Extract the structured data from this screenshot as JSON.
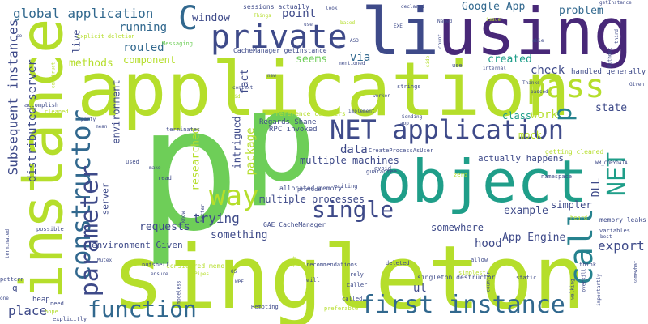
{
  "palette": {
    "background": "#ffffff",
    "lime": "#b5de2b",
    "green": "#6ece58",
    "teal": "#1f9e89",
    "blue": "#26828e",
    "navy": "#3e4a89",
    "purple": "#482878",
    "indigo": "#31688e",
    "yellow": "#fde725"
  },
  "words": [
    {
      "text": "p",
      "size": 210,
      "color": "#6ece58",
      "rot": 0
    },
    {
      "text": "singleton",
      "size": 108,
      "color": "#b5de2b",
      "rot": 0
    },
    {
      "text": "application",
      "size": 92,
      "color": "#b5de2b",
      "rot": 0
    },
    {
      "text": "using",
      "size": 80,
      "color": "#482878",
      "rot": 0
    },
    {
      "text": "li",
      "size": 80,
      "color": "#3e4a89",
      "rot": 0
    },
    {
      "text": "object",
      "size": 72,
      "color": "#1f9e89",
      "rot": 0
    },
    {
      "text": "instance",
      "size": 72,
      "color": "#b5de2b",
      "rot": -90
    },
    {
      "text": "p",
      "size": 150,
      "color": "#6ece58",
      "rot": 0
    },
    {
      "text": "private",
      "size": 40,
      "color": "#3e4a89",
      "rot": 0
    },
    {
      "text": "pass",
      "size": 40,
      "color": "#b5de2b",
      "rot": 0
    },
    {
      "text": "C",
      "size": 40,
      "color": "#31688e",
      "rot": 0
    },
    {
      "text": "NET application",
      "size": 32,
      "color": "#3e4a89",
      "rot": 0
    },
    {
      "text": "first instance",
      "size": 30,
      "color": "#31688e",
      "rot": 0
    },
    {
      "text": "function",
      "size": 28,
      "color": "#31688e",
      "rot": 0
    },
    {
      "text": "way",
      "size": 34,
      "color": "#b5de2b",
      "rot": 0
    },
    {
      "text": "single",
      "size": 28,
      "color": "#3e4a89",
      "rot": 0
    },
    {
      "text": "call",
      "size": 40,
      "color": "#26828e",
      "rot": -90
    },
    {
      "text": "constructor",
      "size": 32,
      "color": "#31688e",
      "rot": -90
    },
    {
      "text": "parameter",
      "size": 30,
      "color": "#3e4a89",
      "rot": -90
    },
    {
      "text": "NET",
      "size": 30,
      "color": "#1f9e89",
      "rot": -90
    },
    {
      "text": "global application",
      "size": 16,
      "color": "#31688e",
      "rot": 0
    },
    {
      "text": "Google App",
      "size": 13,
      "color": "#31688e",
      "rot": 0
    },
    {
      "text": "problem",
      "size": 13,
      "color": "#31688e",
      "rot": 0
    },
    {
      "text": "window",
      "size": 13,
      "color": "#3e4a89",
      "rot": 0
    },
    {
      "text": "point",
      "size": 14,
      "color": "#3e4a89",
      "rot": 0
    },
    {
      "text": "running",
      "size": 14,
      "color": "#31688e",
      "rot": 0
    },
    {
      "text": "routed",
      "size": 14,
      "color": "#31688e",
      "rot": 0
    },
    {
      "text": "component",
      "size": 12,
      "color": "#b5de2b",
      "rot": 0
    },
    {
      "text": "methods",
      "size": 13,
      "color": "#b5de2b",
      "rot": 0
    },
    {
      "text": "seems",
      "size": 13,
      "color": "#6ece58",
      "rot": 0
    },
    {
      "text": "via",
      "size": 14,
      "color": "#31688e",
      "rot": 0
    },
    {
      "text": "created",
      "size": 13,
      "color": "#1f9e89",
      "rot": 0
    },
    {
      "text": "check",
      "size": 14,
      "color": "#3e4a89",
      "rot": 0
    },
    {
      "text": "work",
      "size": 14,
      "color": "#b5de2b",
      "rot": 0
    },
    {
      "text": "state",
      "size": 13,
      "color": "#3e4a89",
      "rot": 0
    },
    {
      "text": "class",
      "size": 12,
      "color": "#1f9e89",
      "rot": 0
    },
    {
      "text": "data",
      "size": 14,
      "color": "#3e4a89",
      "rot": 0
    },
    {
      "text": "multiple machines",
      "size": 12,
      "color": "#3e4a89",
      "rot": 0
    },
    {
      "text": "multiple processes",
      "size": 12,
      "color": "#3e4a89",
      "rot": 0
    },
    {
      "text": "example",
      "size": 13,
      "color": "#3e4a89",
      "rot": 0
    },
    {
      "text": "requests",
      "size": 13,
      "color": "#3e4a89",
      "rot": 0
    },
    {
      "text": "trying",
      "size": 16,
      "color": "#3e4a89",
      "rot": 0
    },
    {
      "text": "something",
      "size": 13,
      "color": "#3e4a89",
      "rot": 0
    },
    {
      "text": "hood",
      "size": 14,
      "color": "#3e4a89",
      "rot": 0
    },
    {
      "text": "App Engine",
      "size": 13,
      "color": "#3e4a89",
      "rot": 0
    },
    {
      "text": "export",
      "size": 16,
      "color": "#3e4a89",
      "rot": 0
    },
    {
      "text": "simpler",
      "size": 12,
      "color": "#3e4a89",
      "rot": 0
    },
    {
      "text": "somewhere",
      "size": 12,
      "color": "#3e4a89",
      "rot": 0
    },
    {
      "text": "place",
      "size": 16,
      "color": "#3e4a89",
      "rot": 0
    },
    {
      "text": "ul",
      "size": 14,
      "color": "#3e4a89",
      "rot": 0
    },
    {
      "text": "environment Given",
      "size": 11,
      "color": "#3e4a89",
      "rot": 0
    },
    {
      "text": "actually happens",
      "size": 11,
      "color": "#3e4a89",
      "rot": 0
    },
    {
      "text": "handled generally",
      "size": 9,
      "color": "#3e4a89",
      "rot": 0
    },
    {
      "text": "mock",
      "size": 12,
      "color": "#b5de2b",
      "rot": 0
    },
    {
      "text": "RPC invoked",
      "size": 9,
      "color": "#3e4a89",
      "rot": 0
    },
    {
      "text": "Regards Shane",
      "size": 9,
      "color": "#3e4a89",
      "rot": 0
    },
    {
      "text": "GAE CacheManager",
      "size": 8,
      "color": "#3e4a89",
      "rot": 0
    },
    {
      "text": "allocated memory",
      "size": 8,
      "color": "#3e4a89",
      "rot": 0
    },
    {
      "text": "CacheManager getInstance",
      "size": 8,
      "color": "#3e4a89",
      "rot": 0
    },
    {
      "text": "sessions actually",
      "size": 8,
      "color": "#3e4a89",
      "rot": 0
    },
    {
      "text": "Subsequent instances",
      "size": 16,
      "color": "#3e4a89",
      "rot": -90
    },
    {
      "text": "distributed server",
      "size": 14,
      "color": "#3e4a89",
      "rot": -90
    },
    {
      "text": "environment",
      "size": 12,
      "color": "#3e4a89",
      "rot": -90
    },
    {
      "text": "server",
      "size": 11,
      "color": "#3e4a89",
      "rot": -90
    },
    {
      "text": "researched",
      "size": 13,
      "color": "#b5de2b",
      "rot": -90
    },
    {
      "text": "intrigued",
      "size": 12,
      "color": "#3e4a89",
      "rot": -90
    },
    {
      "text": "package",
      "size": 14,
      "color": "#b5de2b",
      "rot": -90
    },
    {
      "text": "fact",
      "size": 13,
      "color": "#3e4a89",
      "rot": -90
    },
    {
      "text": "live",
      "size": 12,
      "color": "#3e4a89",
      "rot": -90
    },
    {
      "text": "DLL",
      "size": 13,
      "color": "#3e4a89",
      "rot": -90
    },
    {
      "text": "memory leaks",
      "size": 8,
      "color": "#3e4a89",
      "rot": 0
    },
    {
      "text": "reference counters",
      "size": 8,
      "color": "#b5de2b",
      "rot": 0
    },
    {
      "text": "singleton destructor",
      "size": 8,
      "color": "#3e4a89",
      "rot": 0
    },
    {
      "text": "considered memory",
      "size": 8,
      "color": "#b5de2b",
      "rot": 0
    },
    {
      "text": "getting cleaned",
      "size": 8,
      "color": "#b5de2b",
      "rot": 0
    },
    {
      "text": "CreateProcessAsUser",
      "size": 7,
      "color": "#3e4a89",
      "rot": 0
    },
    {
      "text": "explicit deletion",
      "size": 7,
      "color": "#b5de2b",
      "rot": 0
    },
    {
      "text": "Messaging",
      "size": 7,
      "color": "#6ece58",
      "rot": 0
    },
    {
      "text": "terminates",
      "size": 7,
      "color": "#3e4a89",
      "rot": 0
    },
    {
      "text": "nutshell",
      "size": 7,
      "color": "#3e4a89",
      "rot": 0
    },
    {
      "text": "Remoting",
      "size": 7,
      "color": "#3e4a89",
      "rot": 0
    },
    {
      "text": "recommendations",
      "size": 7,
      "color": "#3e4a89",
      "rot": 0
    },
    {
      "text": "deleted",
      "size": 7,
      "color": "#3e4a89",
      "rot": 0
    },
    {
      "text": "namespace",
      "size": 7,
      "color": "#3e4a89",
      "rot": 0
    },
    {
      "text": "WM_COPYDATA",
      "size": 6,
      "color": "#3e4a89",
      "rot": 0
    },
    {
      "text": "heap",
      "size": 9,
      "color": "#3e4a89",
      "rot": 0
    },
    {
      "text": "hope",
      "size": 7,
      "color": "#b5de2b",
      "rot": 0
    },
    {
      "text": "need",
      "size": 7,
      "color": "#3e4a89",
      "rot": 0
    },
    {
      "text": "explicitly",
      "size": 7,
      "color": "#3e4a89",
      "rot": 0
    },
    {
      "text": "possible",
      "size": 7,
      "color": "#3e4a89",
      "rot": 0
    },
    {
      "text": "pattern",
      "size": 7,
      "color": "#3e4a89",
      "rot": 0
    },
    {
      "text": "accomplish",
      "size": 7,
      "color": "#3e4a89",
      "rot": 0
    },
    {
      "text": "cleaned",
      "size": 7,
      "color": "#b5de2b",
      "rot": 0
    },
    {
      "text": "party",
      "size": 6,
      "color": "#3e4a89",
      "rot": 0
    },
    {
      "text": "mean",
      "size": 6,
      "color": "#3e4a89",
      "rot": 0
    },
    {
      "text": "used",
      "size": 7,
      "color": "#3e4a89",
      "rot": 0
    },
    {
      "text": "make",
      "size": 6,
      "color": "#3e4a89",
      "rot": 0
    },
    {
      "text": "read",
      "size": 7,
      "color": "#3e4a89",
      "rot": 0
    },
    {
      "text": "Mutex",
      "size": 6,
      "color": "#3e4a89",
      "rot": 0
    },
    {
      "text": "Pipes",
      "size": 6,
      "color": "#b5de2b",
      "rot": 0
    },
    {
      "text": "WPF",
      "size": 6,
      "color": "#3e4a89",
      "rot": 0
    },
    {
      "text": "OS",
      "size": 6,
      "color": "#3e4a89",
      "rot": 0
    },
    {
      "text": "called",
      "size": 7,
      "color": "#3e4a89",
      "rot": 0
    },
    {
      "text": "preferable",
      "size": 7,
      "color": "#b5de2b",
      "rot": 0
    },
    {
      "text": "will",
      "size": 7,
      "color": "#3e4a89",
      "rot": 0
    },
    {
      "text": "rely",
      "size": 7,
      "color": "#3e4a89",
      "rot": 0
    },
    {
      "text": "caller",
      "size": 7,
      "color": "#3e4a89",
      "rot": 0
    },
    {
      "text": "allow",
      "size": 7,
      "color": "#3e4a89",
      "rot": 0
    },
    {
      "text": "simplest",
      "size": 7,
      "color": "#b5de2b",
      "rot": 0
    },
    {
      "text": "static",
      "size": 7,
      "color": "#3e4a89",
      "rot": 0
    },
    {
      "text": "think",
      "size": 7,
      "color": "#3e4a89",
      "rot": 0
    },
    {
      "text": "variables",
      "size": 7,
      "color": "#3e4a89",
      "rot": 0
    },
    {
      "text": "heard",
      "size": 7,
      "color": "#b5de2b",
      "rot": 0
    },
    {
      "text": "best",
      "size": 6,
      "color": "#3e4a89",
      "rot": 0
    },
    {
      "text": "guarantee",
      "size": 7,
      "color": "#3e4a89",
      "rot": 0
    },
    {
      "text": "exiting",
      "size": 7,
      "color": "#3e4a89",
      "rot": 0
    },
    {
      "text": "provide",
      "size": 7,
      "color": "#3e4a89",
      "rot": 0
    },
    {
      "text": "avoid",
      "size": 7,
      "color": "#3e4a89",
      "rot": 0
    },
    {
      "text": "zero",
      "size": 7,
      "color": "#b5de2b",
      "rot": 0
    },
    {
      "text": "app",
      "size": 6,
      "color": "#3e4a89",
      "rot": 0
    },
    {
      "text": "Sending",
      "size": 6,
      "color": "#3e4a89",
      "rot": 0
    },
    {
      "text": "implement",
      "size": 6,
      "color": "#3e4a89",
      "rot": 0
    },
    {
      "text": "strings",
      "size": 7,
      "color": "#3e4a89",
      "rot": 0
    },
    {
      "text": "worker",
      "size": 6,
      "color": "#3e4a89",
      "rot": 0
    },
    {
      "text": "context",
      "size": 6,
      "color": "#3e4a89",
      "rot": 0
    },
    {
      "text": "said",
      "size": 6,
      "color": "#b5de2b",
      "rot": 0
    },
    {
      "text": "new",
      "size": 6,
      "color": "#3e4a89",
      "rot": 0
    },
    {
      "text": "mentioned",
      "size": 6,
      "color": "#3e4a89",
      "rot": 0
    },
    {
      "text": "use",
      "size": 7,
      "color": "#3e4a89",
      "rot": 0
    },
    {
      "text": "internal",
      "size": 6,
      "color": "#3e4a89",
      "rot": 0
    },
    {
      "text": "Thanks",
      "size": 6,
      "color": "#3e4a89",
      "rot": 0
    },
    {
      "text": "passed",
      "size": 6,
      "color": "#3e4a89",
      "rot": 0
    },
    {
      "text": "Given",
      "size": 6,
      "color": "#3e4a89",
      "rot": 0
    },
    {
      "text": "AS3",
      "size": 6,
      "color": "#3e4a89",
      "rot": 0
    },
    {
      "text": "EXE",
      "size": 6,
      "color": "#3e4a89",
      "rot": 0
    },
    {
      "text": "Named",
      "size": 6,
      "color": "#3e4a89",
      "rot": 0
    },
    {
      "text": "declared",
      "size": 6,
      "color": "#3e4a89",
      "rot": 0
    },
    {
      "text": "based",
      "size": 6,
      "color": "#b5de2b",
      "rot": 0
    },
    {
      "text": "look",
      "size": 6,
      "color": "#3e4a89",
      "rot": 0
    },
    {
      "text": "Things",
      "size": 6,
      "color": "#b5de2b",
      "rot": 0
    },
    {
      "text": "getInstance",
      "size": 6,
      "color": "#3e4a89",
      "rot": 0
    },
    {
      "text": "able",
      "size": 6,
      "color": "#3e4a89",
      "rot": 0
    },
    {
      "text": "Without",
      "size": 6,
      "color": "#3e4a89",
      "rot": -90
    },
    {
      "text": "third",
      "size": 6,
      "color": "#3e4a89",
      "rot": -90
    },
    {
      "text": "count",
      "size": 6,
      "color": "#3e4a89",
      "rot": -90
    },
    {
      "text": "side",
      "size": 6,
      "color": "#b5de2b",
      "rot": -90
    },
    {
      "text": "overkill",
      "size": 6,
      "color": "#3e4a89",
      "rot": -90
    },
    {
      "text": "importantly",
      "size": 6,
      "color": "#3e4a89",
      "rot": -90
    },
    {
      "text": "walking",
      "size": 6,
      "color": "#3e4a89",
      "rot": -90
    },
    {
      "text": "counter",
      "size": 6,
      "color": "#3e4a89",
      "rot": -90
    },
    {
      "text": "modeless",
      "size": 6,
      "color": "#3e4a89",
      "rot": -90
    },
    {
      "text": "terminated",
      "size": 6,
      "color": "#3e4a89",
      "rot": -90
    },
    {
      "text": "somewhat",
      "size": 6,
      "color": "#3e4a89",
      "rot": -90
    },
    {
      "text": "know",
      "size": 6,
      "color": "#3e4a89",
      "rot": -90
    },
    {
      "text": "ensure",
      "size": 6,
      "color": "#3e4a89",
      "rot": 0
    },
    {
      "text": "one",
      "size": 6,
      "color": "#3e4a89",
      "rot": 0
    },
    {
      "text": "construct",
      "size": 6,
      "color": "#b5de2b",
      "rot": -90
    },
    {
      "text": "co",
      "size": 6,
      "color": "#3e4a89",
      "rot": 0
    },
    {
      "text": "better",
      "size": 6,
      "color": "#3e4a89",
      "rot": -90
    },
    {
      "text": "test",
      "size": 6,
      "color": "#b5de2b",
      "rot": -90
    },
    {
      "text": "issue",
      "size": 6,
      "color": "#b5de2b",
      "rot": 0
    },
    {
      "text": "use",
      "size": 6,
      "color": "#3e4a89",
      "rot": 0
    },
    {
      "text": "q",
      "size": 11,
      "color": "#3e4a89",
      "rot": 0
    },
    {
      "text": "p",
      "size": 30,
      "color": "#26828e",
      "rot": -90
    }
  ]
}
